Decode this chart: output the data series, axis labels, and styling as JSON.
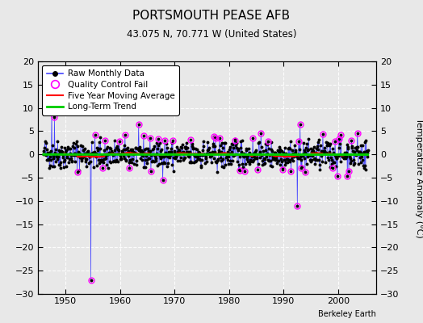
{
  "title": "PORTSMOUTH PEASE AFB",
  "subtitle": "43.075 N, 70.771 W (United States)",
  "ylabel": "Temperature Anomaly (°C)",
  "credit": "Berkeley Earth",
  "xmin": 1945,
  "xmax": 2007,
  "ymin": -30,
  "ymax": 20,
  "yticks": [
    -30,
    -25,
    -20,
    -15,
    -10,
    -5,
    0,
    5,
    10,
    15,
    20
  ],
  "xticks": [
    1950,
    1960,
    1970,
    1980,
    1990,
    2000
  ],
  "background_color": "#e8e8e8",
  "grid_color": "#c8c8c8",
  "raw_line_color": "#4444ff",
  "raw_dot_color": "#000000",
  "qc_fail_color": "#ff00ff",
  "moving_avg_color": "#ff0000",
  "trend_color": "#00cc00",
  "seed": 42,
  "t_start": 1946.0,
  "t_end": 2005.5
}
